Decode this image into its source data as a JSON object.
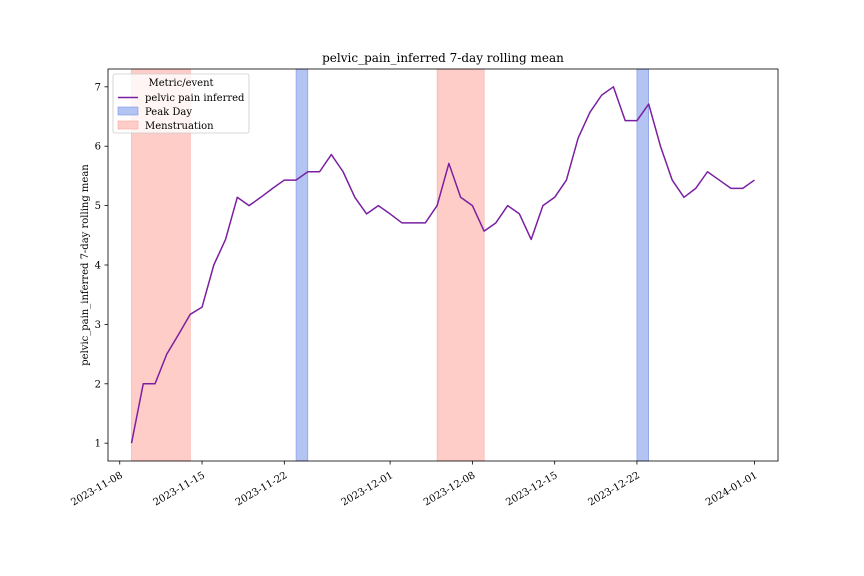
{
  "chart_data": {
    "type": "line",
    "title": "pelvic_pain_inferred 7-day rolling mean",
    "xlabel": "",
    "ylabel": "pelvic_pain_inferred 7-day rolling mean",
    "xlim": [
      "2023-11-07",
      "2024-01-03"
    ],
    "ylim": [
      0.7,
      7.3
    ],
    "x_ticks": [
      "2023-11-08",
      "2023-11-15",
      "2023-11-22",
      "2023-12-01",
      "2023-12-08",
      "2023-12-15",
      "2023-12-22",
      "2024-01-01"
    ],
    "y_ticks": [
      1,
      2,
      3,
      4,
      5,
      6,
      7
    ],
    "grid": false,
    "legend": {
      "title": "Metric/event",
      "placement": "top-left",
      "entries": [
        {
          "label": "pelvic pain inferred",
          "kind": "line",
          "color": "#7b1fa2"
        },
        {
          "label": "Peak Day",
          "kind": "patch",
          "color": "#b3c3f2",
          "edge": "#7c96e6"
        },
        {
          "label": "Menstruation",
          "kind": "patch",
          "color": "#ffcdc8",
          "edge": "#f4a7a0"
        }
      ]
    },
    "series": [
      {
        "name": "pelvic pain inferred",
        "color": "#7b1fa2",
        "x": [
          "2023-11-09",
          "2023-11-10",
          "2023-11-11",
          "2023-11-12",
          "2023-11-13",
          "2023-11-14",
          "2023-11-15",
          "2023-11-16",
          "2023-11-17",
          "2023-11-18",
          "2023-11-19",
          "2023-11-20",
          "2023-11-21",
          "2023-11-22",
          "2023-11-23",
          "2023-11-24",
          "2023-11-25",
          "2023-11-26",
          "2023-11-27",
          "2023-11-28",
          "2023-11-29",
          "2023-11-30",
          "2023-12-01",
          "2023-12-02",
          "2023-12-03",
          "2023-12-04",
          "2023-12-05",
          "2023-12-06",
          "2023-12-07",
          "2023-12-08",
          "2023-12-09",
          "2023-12-10",
          "2023-12-11",
          "2023-12-12",
          "2023-12-13",
          "2023-12-14",
          "2023-12-15",
          "2023-12-16",
          "2023-12-17",
          "2023-12-18",
          "2023-12-19",
          "2023-12-20",
          "2023-12-21",
          "2023-12-22",
          "2023-12-23",
          "2023-12-24",
          "2023-12-25",
          "2023-12-26",
          "2023-12-27",
          "2023-12-28",
          "2023-12-29",
          "2023-12-30",
          "2023-12-31",
          "2024-01-01"
        ],
        "values": [
          1.0,
          2.0,
          2.0,
          2.5,
          2.83,
          3.17,
          3.29,
          4.0,
          4.43,
          5.14,
          5.0,
          5.14,
          5.29,
          5.43,
          5.43,
          5.57,
          5.57,
          5.86,
          5.57,
          5.14,
          4.86,
          5.0,
          4.86,
          4.71,
          4.71,
          4.71,
          5.0,
          5.71,
          5.14,
          5.0,
          4.57,
          4.71,
          5.0,
          4.86,
          4.43,
          5.0,
          5.14,
          5.43,
          6.14,
          6.57,
          6.86,
          7.0,
          6.43,
          6.43,
          6.71,
          6.0,
          5.43,
          5.14,
          5.29,
          5.57,
          5.43,
          5.29,
          5.29,
          5.43
        ]
      }
    ],
    "spans": [
      {
        "event": "Menstruation",
        "start": "2023-11-09",
        "end": "2023-11-14",
        "color": "#ffcdc8",
        "edge": "#f4a7a0"
      },
      {
        "event": "Peak Day",
        "start": "2023-11-23",
        "end": "2023-11-24",
        "color": "#b3c3f2",
        "edge": "#7c96e6"
      },
      {
        "event": "Menstruation",
        "start": "2023-12-05",
        "end": "2023-12-09",
        "color": "#ffcdc8",
        "edge": "#f4a7a0"
      },
      {
        "event": "Peak Day",
        "start": "2023-12-22",
        "end": "2023-12-23",
        "color": "#b3c3f2",
        "edge": "#7c96e6"
      }
    ]
  }
}
